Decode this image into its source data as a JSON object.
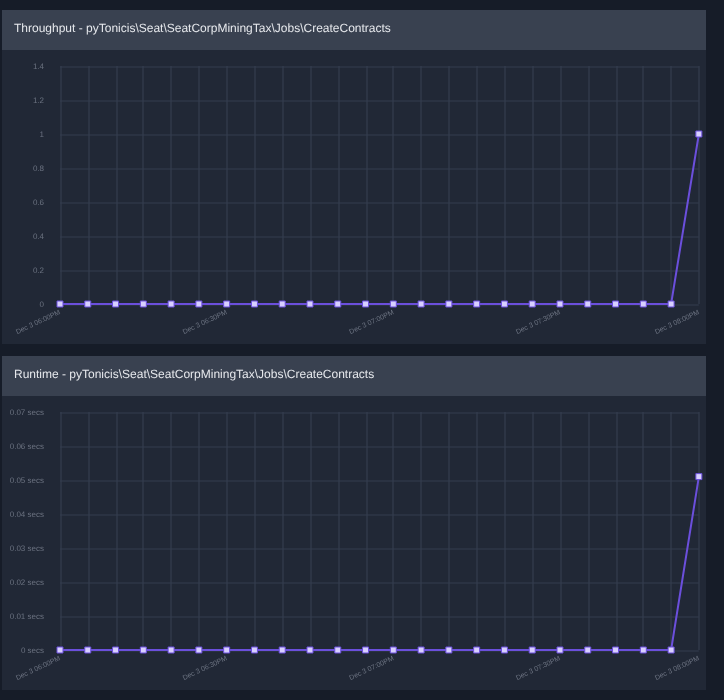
{
  "chart_data": [
    {
      "type": "line",
      "title": "Throughput - pyTonicis\\Seat\\SeatCorpMiningTax\\Jobs\\CreateContracts",
      "categories": [
        "Dec 3 06:00PM",
        null,
        null,
        null,
        null,
        null,
        "Dec 3 06:30PM",
        null,
        null,
        null,
        null,
        null,
        "Dec 3 07:00PM",
        null,
        null,
        null,
        null,
        null,
        "Dec 3 07:30PM",
        null,
        null,
        null,
        null,
        "Dec 3 08:00PM"
      ],
      "series": [
        {
          "color": "#6b4fdc",
          "values": [
            0,
            0,
            0,
            0,
            0,
            0,
            0,
            0,
            0,
            0,
            0,
            0,
            0,
            0,
            0,
            0,
            0,
            0,
            0,
            0,
            0,
            0,
            0,
            1
          ]
        }
      ],
      "ylim": [
        0,
        1.4
      ],
      "yticks": [
        0,
        0.2,
        0.4,
        0.6,
        0.8,
        1,
        1.2,
        1.4
      ],
      "grid": true,
      "marker": "square"
    },
    {
      "type": "line",
      "title": "Runtime - pyTonicis\\Seat\\SeatCorpMiningTax\\Jobs\\CreateContracts",
      "categories": [
        "Dec 3 06:00PM",
        null,
        null,
        null,
        null,
        null,
        "Dec 3 06:30PM",
        null,
        null,
        null,
        null,
        null,
        "Dec 3 07:00PM",
        null,
        null,
        null,
        null,
        null,
        "Dec 3 07:30PM",
        null,
        null,
        null,
        null,
        "Dec 3 08:00PM"
      ],
      "series": [
        {
          "color": "#6b4fdc",
          "values": [
            0,
            0,
            0,
            0,
            0,
            0,
            0,
            0,
            0,
            0,
            0,
            0,
            0,
            0,
            0,
            0,
            0,
            0,
            0,
            0,
            0,
            0,
            0,
            0.051
          ]
        }
      ],
      "ylim": [
        0,
        0.07
      ],
      "yticks": [
        {
          "value": 0,
          "label": "0 secs"
        },
        {
          "value": 0.01,
          "label": "0.01 secs"
        },
        {
          "value": 0.02,
          "label": "0.02 secs"
        },
        {
          "value": 0.03,
          "label": "0.03 secs"
        },
        {
          "value": 0.04,
          "label": "0.04 secs"
        },
        {
          "value": 0.05,
          "label": "0.05 secs"
        },
        {
          "value": 0.06,
          "label": "0.06 secs"
        },
        {
          "value": 0.07,
          "label": "0.07 secs"
        }
      ],
      "grid": true,
      "marker": "square"
    }
  ]
}
